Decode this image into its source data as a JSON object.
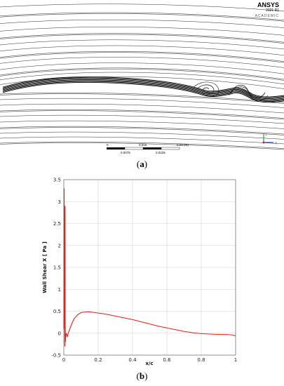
{
  "panel_a": {
    "caption_label": "a",
    "logo": {
      "brand": "ANSYS",
      "version": "2021 R1",
      "edition": "ACADEMIC"
    },
    "scale_bar": {
      "top_labels": [
        "0",
        "0.015",
        "0.03 (m)"
      ],
      "bottom_labels": [
        "0.0075",
        "0.0225"
      ]
    },
    "triad": {
      "vertical_label": "Y",
      "horizontal_label": "X"
    }
  },
  "panel_b": {
    "caption_label": "b",
    "chart_data": {
      "type": "line",
      "title": "",
      "xlabel": "x/c",
      "ylabel": "Wall Shear X [ Pa ]",
      "xlim": [
        0,
        1
      ],
      "ylim": [
        -0.5,
        3.5
      ],
      "x_ticks": [
        0,
        0.2,
        0.4,
        0.6,
        0.8,
        1
      ],
      "x_tick_labels": [
        "0",
        "0.2",
        "0.4",
        "0.6",
        "0.8",
        "1"
      ],
      "y_ticks": [
        -0.5,
        0,
        0.5,
        1,
        1.5,
        2,
        2.5,
        3,
        3.5
      ],
      "y_tick_labels": [
        "-0.5",
        "0",
        "0.5",
        "1",
        "1.5",
        "2",
        "2.5",
        "3",
        "3.5"
      ],
      "grid": true,
      "series_color": "#e8201a",
      "series": [
        {
          "x": [
            0.0,
            0.002,
            0.004,
            0.006,
            0.007,
            0.008,
            0.009,
            0.01,
            0.012,
            0.015,
            0.02,
            0.03,
            0.04,
            0.05,
            0.06,
            0.08,
            0.1,
            0.12,
            0.14,
            0.16,
            0.18,
            0.2,
            0.25,
            0.3,
            0.35,
            0.4,
            0.45,
            0.5,
            0.55,
            0.6,
            0.65,
            0.7,
            0.75,
            0.8,
            0.85,
            0.9,
            0.95,
            0.98,
            1.0
          ],
          "y": [
            0.1,
            3.3,
            0.5,
            -0.3,
            2.9,
            0.2,
            -0.2,
            -0.1,
            -0.05,
            0.0,
            -0.08,
            0.05,
            0.15,
            0.25,
            0.33,
            0.42,
            0.47,
            0.48,
            0.49,
            0.48,
            0.47,
            0.46,
            0.43,
            0.39,
            0.35,
            0.31,
            0.26,
            0.21,
            0.16,
            0.12,
            0.08,
            0.04,
            0.01,
            -0.01,
            -0.02,
            -0.03,
            -0.03,
            -0.04,
            -0.06
          ]
        }
      ]
    }
  }
}
